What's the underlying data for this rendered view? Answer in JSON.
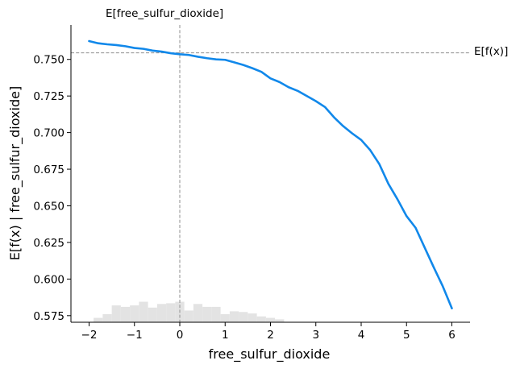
{
  "chart_data": {
    "type": "line",
    "title": "",
    "xlabel": "free_sulfur_dioxide",
    "ylabel": "E[f(x) | free_sulfur_dioxide]",
    "xlim": [
      -2.4,
      6.4
    ],
    "ylim": [
      0.5705,
      0.7735
    ],
    "x_ticks": [
      -2,
      -1,
      0,
      1,
      2,
      3,
      4,
      5,
      6
    ],
    "x_tick_labels": [
      "−2",
      "−1",
      "0",
      "1",
      "2",
      "3",
      "4",
      "5",
      "6"
    ],
    "y_ticks": [
      0.575,
      0.6,
      0.625,
      0.65,
      0.675,
      0.7,
      0.725,
      0.75
    ],
    "y_tick_labels": [
      "0.575",
      "0.600",
      "0.625",
      "0.650",
      "0.675",
      "0.700",
      "0.725",
      "0.750"
    ],
    "grid": false,
    "colors": {
      "line": "#1188ea",
      "reference": "#999999",
      "histogram": "#e3e3e3",
      "axes": "#000000"
    },
    "reference_lines": {
      "expected_value": 0.7545,
      "expected_value_label": "E[f(x)]",
      "feature_mean": 0.0,
      "feature_mean_label": "E[free_sulfur_dioxide]"
    },
    "series": [
      {
        "values": [
          {
            "x": -2.0,
            "y": 0.7625
          },
          {
            "x": -1.8,
            "y": 0.761
          },
          {
            "x": -1.6,
            "y": 0.7603
          },
          {
            "x": -1.4,
            "y": 0.7598
          },
          {
            "x": -1.2,
            "y": 0.759
          },
          {
            "x": -1.0,
            "y": 0.7578
          },
          {
            "x": -0.8,
            "y": 0.7572
          },
          {
            "x": -0.6,
            "y": 0.756
          },
          {
            "x": -0.4,
            "y": 0.7553
          },
          {
            "x": -0.2,
            "y": 0.7542
          },
          {
            "x": 0.0,
            "y": 0.7535
          },
          {
            "x": 0.2,
            "y": 0.753
          },
          {
            "x": 0.4,
            "y": 0.7518
          },
          {
            "x": 0.6,
            "y": 0.7508
          },
          {
            "x": 0.8,
            "y": 0.75
          },
          {
            "x": 1.0,
            "y": 0.7497
          },
          {
            "x": 1.2,
            "y": 0.748
          },
          {
            "x": 1.4,
            "y": 0.7462
          },
          {
            "x": 1.6,
            "y": 0.744
          },
          {
            "x": 1.8,
            "y": 0.7415
          },
          {
            "x": 2.0,
            "y": 0.737
          },
          {
            "x": 2.2,
            "y": 0.7345
          },
          {
            "x": 2.4,
            "y": 0.731
          },
          {
            "x": 2.6,
            "y": 0.7285
          },
          {
            "x": 2.8,
            "y": 0.725
          },
          {
            "x": 3.0,
            "y": 0.7215
          },
          {
            "x": 3.2,
            "y": 0.7175
          },
          {
            "x": 3.4,
            "y": 0.7105
          },
          {
            "x": 3.6,
            "y": 0.7045
          },
          {
            "x": 3.8,
            "y": 0.6995
          },
          {
            "x": 4.0,
            "y": 0.695
          },
          {
            "x": 4.2,
            "y": 0.688
          },
          {
            "x": 4.4,
            "y": 0.6785
          },
          {
            "x": 4.6,
            "y": 0.665
          },
          {
            "x": 4.8,
            "y": 0.6545
          },
          {
            "x": 5.0,
            "y": 0.643
          },
          {
            "x": 5.2,
            "y": 0.635
          },
          {
            "x": 5.4,
            "y": 0.6215
          },
          {
            "x": 5.6,
            "y": 0.608
          },
          {
            "x": 5.8,
            "y": 0.595
          },
          {
            "x": 6.0,
            "y": 0.58
          }
        ]
      }
    ],
    "histogram": {
      "bins": [
        {
          "x0": -1.9,
          "x1": -1.7,
          "y": 0.5735
        },
        {
          "x0": -1.7,
          "x1": -1.5,
          "y": 0.576
        },
        {
          "x0": -1.5,
          "x1": -1.3,
          "y": 0.582
        },
        {
          "x0": -1.3,
          "x1": -1.1,
          "y": 0.581
        },
        {
          "x0": -1.1,
          "x1": -0.9,
          "y": 0.582
        },
        {
          "x0": -0.9,
          "x1": -0.7,
          "y": 0.5845
        },
        {
          "x0": -0.7,
          "x1": -0.5,
          "y": 0.5805
        },
        {
          "x0": -0.5,
          "x1": -0.3,
          "y": 0.583
        },
        {
          "x0": -0.3,
          "x1": -0.1,
          "y": 0.5835
        },
        {
          "x0": -0.1,
          "x1": 0.1,
          "y": 0.5845
        },
        {
          "x0": 0.1,
          "x1": 0.3,
          "y": 0.5785
        },
        {
          "x0": 0.3,
          "x1": 0.5,
          "y": 0.583
        },
        {
          "x0": 0.5,
          "x1": 0.7,
          "y": 0.581
        },
        {
          "x0": 0.7,
          "x1": 0.9,
          "y": 0.581
        },
        {
          "x0": 0.9,
          "x1": 1.1,
          "y": 0.576
        },
        {
          "x0": 1.1,
          "x1": 1.3,
          "y": 0.578
        },
        {
          "x0": 1.3,
          "x1": 1.5,
          "y": 0.5775
        },
        {
          "x0": 1.5,
          "x1": 1.7,
          "y": 0.5765
        },
        {
          "x0": 1.7,
          "x1": 1.9,
          "y": 0.5745
        },
        {
          "x0": 1.9,
          "x1": 2.1,
          "y": 0.5735
        },
        {
          "x0": 2.1,
          "x1": 2.3,
          "y": 0.5725
        }
      ]
    }
  }
}
